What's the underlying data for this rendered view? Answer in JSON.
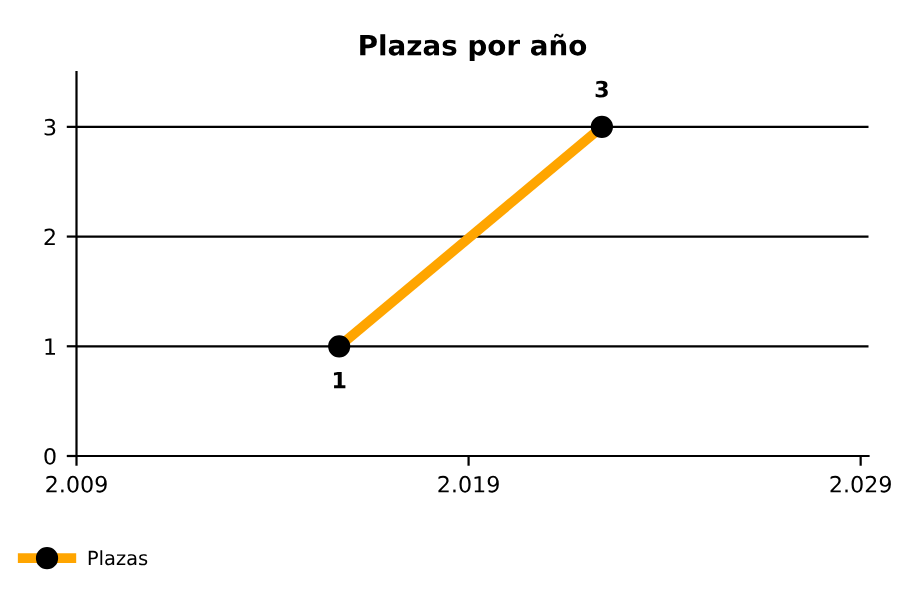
{
  "chart_data": {
    "type": "line",
    "title": "Plazas por año",
    "x": [
      2015.7,
      2022.4
    ],
    "series": [
      {
        "name": "Plazas",
        "color": "#ffa500",
        "values": [
          1,
          3
        ]
      }
    ],
    "xlim": [
      2009,
      2029.2
    ],
    "xticks": [
      {
        "value": 2009,
        "label": "2.009"
      },
      {
        "value": 2019,
        "label": "2.019"
      },
      {
        "value": 2029,
        "label": "2.029"
      }
    ],
    "ylim": [
      0,
      3.5
    ],
    "yticks": [
      0,
      1,
      2,
      3
    ],
    "grid": "y",
    "legend": "bottom left",
    "marker": "circle",
    "line_style": "solid",
    "data_labels": true
  }
}
